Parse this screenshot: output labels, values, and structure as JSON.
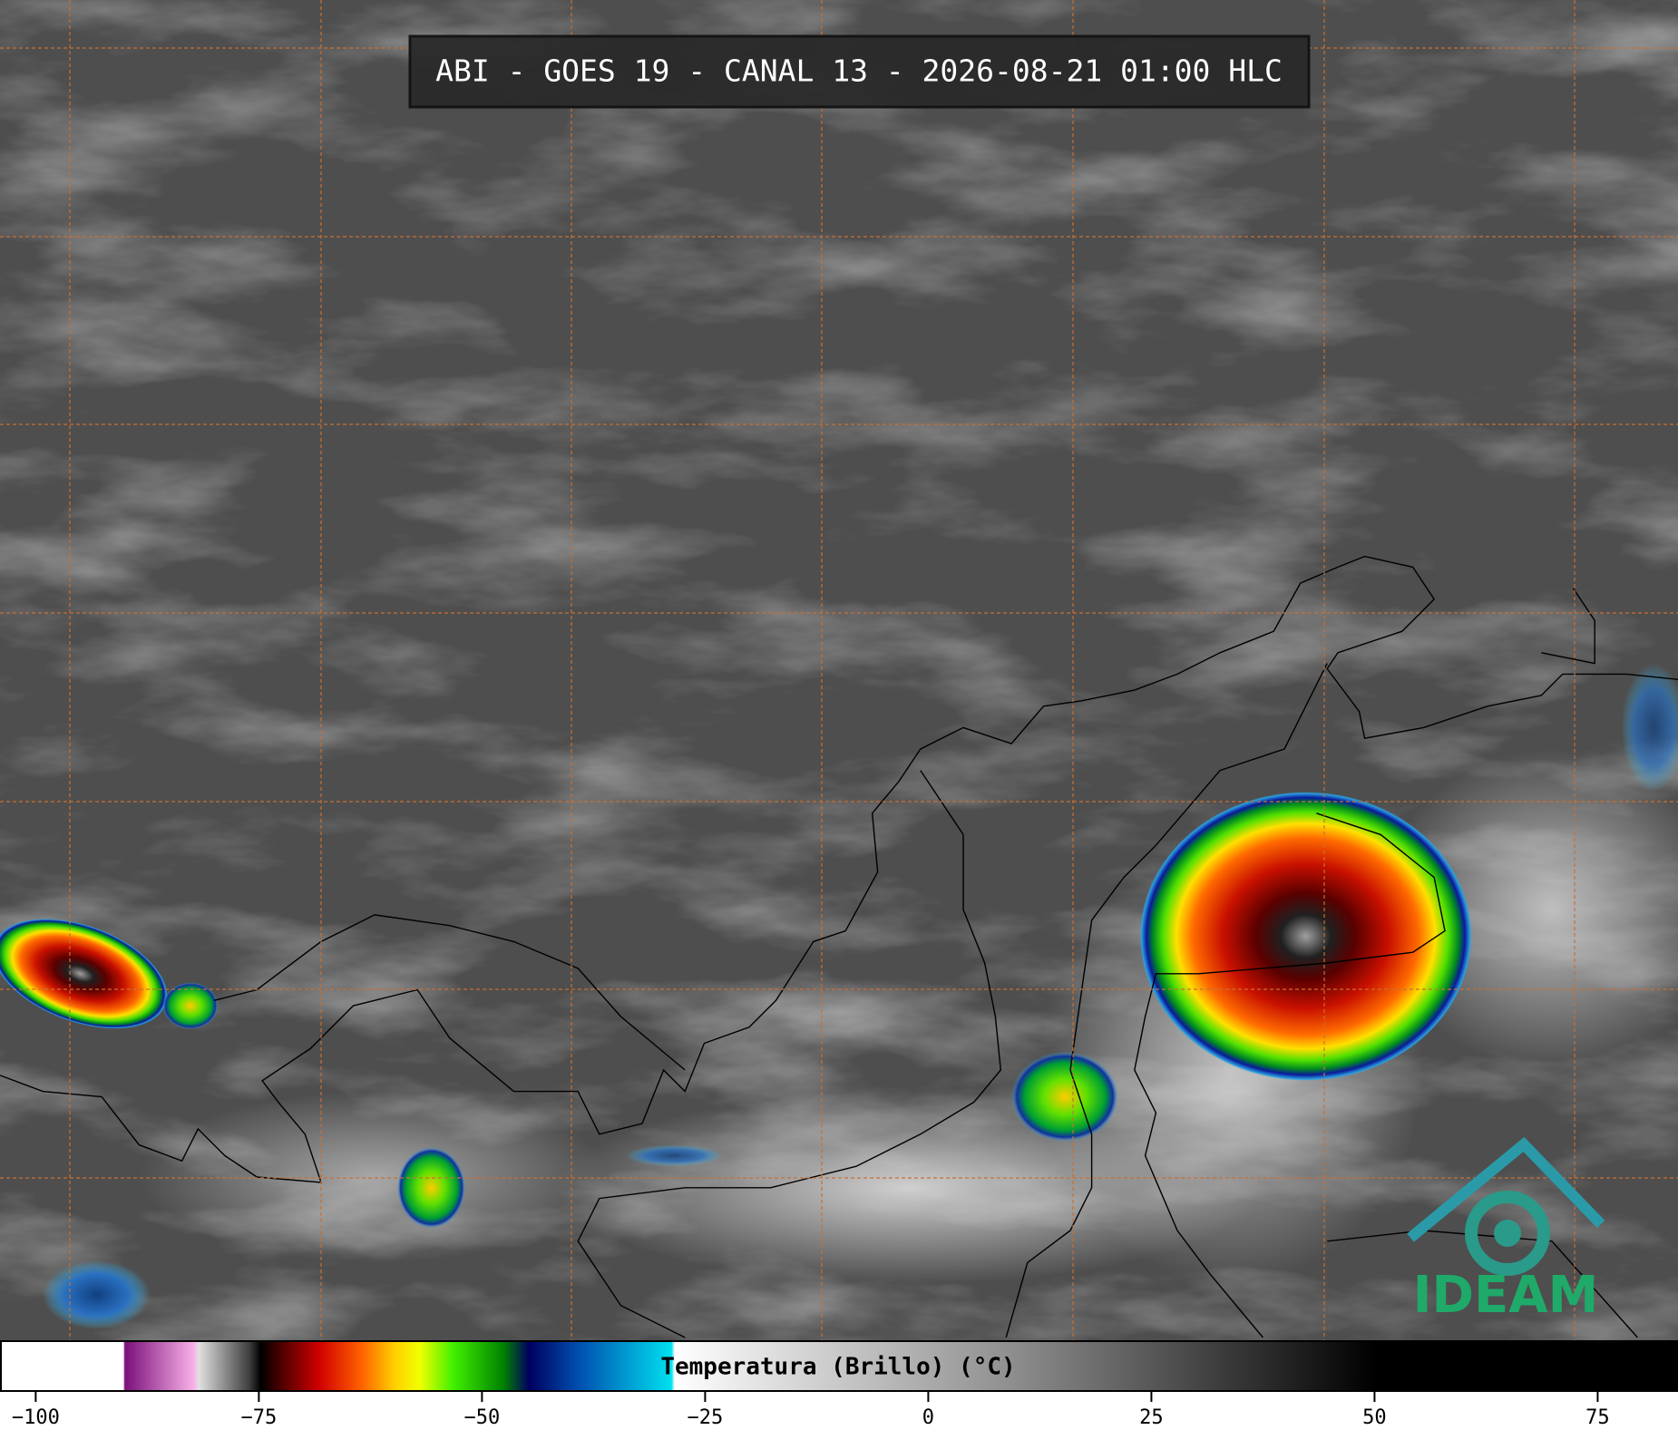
{
  "title": "ABI - GOES 19 - CANAL 13 - 2026-08-21 01:00 HLC",
  "colorbar": {
    "label": "Temperatura (Brillo) (°C)",
    "range": [
      -104,
      84
    ],
    "ticks": [
      {
        "value": -100,
        "label": "−100"
      },
      {
        "value": -75,
        "label": "−75"
      },
      {
        "value": -50,
        "label": "−50"
      },
      {
        "value": -25,
        "label": "−25"
      },
      0,
      25,
      50,
      75
    ]
  },
  "logo": "IDEAM"
}
